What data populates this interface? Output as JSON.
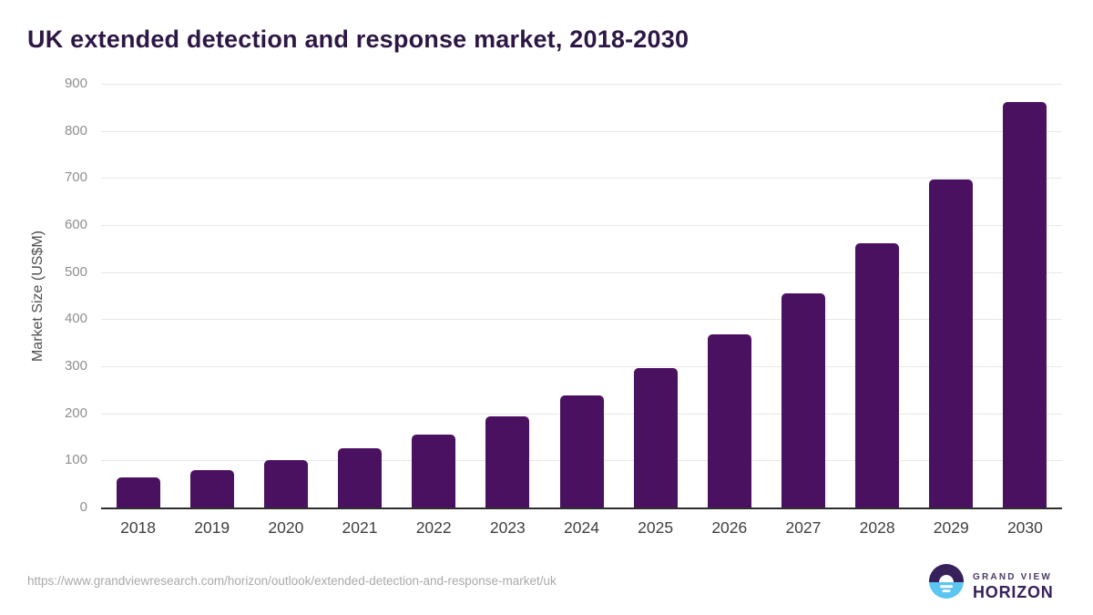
{
  "chart_data": {
    "type": "bar",
    "title": "UK extended detection and response market, 2018-2030",
    "xlabel": "",
    "ylabel": "Market Size (US$M)",
    "categories": [
      "2018",
      "2019",
      "2020",
      "2021",
      "2022",
      "2023",
      "2024",
      "2025",
      "2026",
      "2027",
      "2028",
      "2029",
      "2030"
    ],
    "values": [
      64,
      79,
      100,
      125,
      155,
      193,
      238,
      296,
      367,
      455,
      562,
      696,
      862
    ],
    "ylim": [
      0,
      900
    ],
    "yticks": [
      0,
      100,
      200,
      300,
      400,
      500,
      600,
      700,
      800,
      900
    ],
    "grid": true,
    "legend": "none",
    "bar_color": "#4B1161"
  },
  "colors": {
    "bar": "#4B1161",
    "title": "#2D1845",
    "gridline": "#E7E7E7",
    "axis_line": "#2E2E2E",
    "y_tick": "#8F8F8F",
    "x_tick": "#3F3F3F",
    "axis_title": "#4F4F4F",
    "url_text": "#A9A9A9",
    "logo_purple": "#36215A",
    "logo_blue": "#5CC6F0"
  },
  "footer": {
    "source_url": "https://www.grandviewresearch.com/horizon/outlook/extended-detection-and-response-market/uk",
    "logo": {
      "top": "GRAND VIEW",
      "bottom": "HORIZON"
    }
  }
}
